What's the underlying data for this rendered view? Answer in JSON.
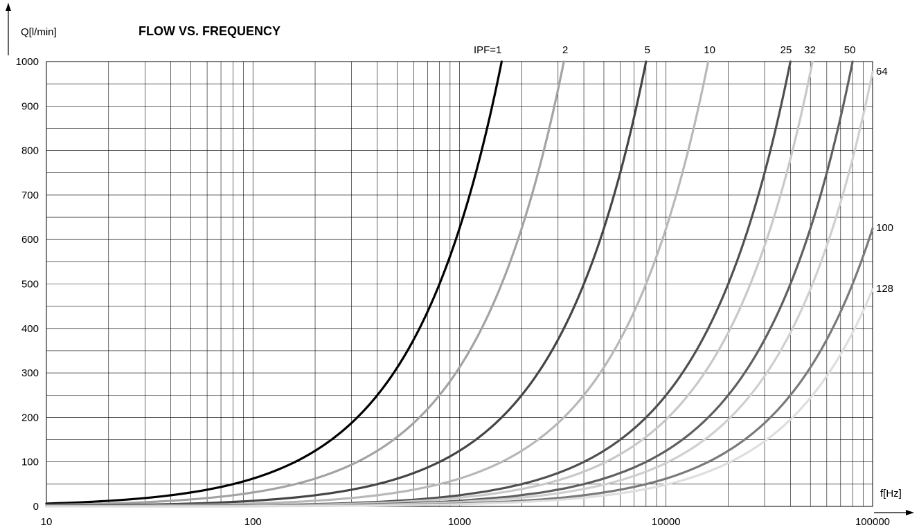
{
  "chart_data": {
    "type": "line",
    "title": "FLOW VS. FREQUENCY",
    "ylabel": "Q[l/min]",
    "xlabel": "f[Hz]",
    "x_scale": "log",
    "xlim": [
      10,
      100000
    ],
    "ylim": [
      0,
      1000
    ],
    "grid": true,
    "x_ticks": [
      10,
      100,
      1000,
      10000,
      100000
    ],
    "x_tick_labels": [
      "10",
      "100",
      "1000",
      "10000",
      "100000"
    ],
    "y_ticks": [
      0,
      100,
      200,
      300,
      400,
      500,
      600,
      700,
      800,
      900,
      1000
    ],
    "y_tick_labels": [
      "0",
      "100",
      "200",
      "300",
      "400",
      "500",
      "600",
      "700",
      "800",
      "900",
      "1000"
    ],
    "series": [
      {
        "name": "IPF=1",
        "color": "#000000",
        "x": [
          10,
          20,
          50,
          100,
          200,
          300,
          400,
          500,
          600,
          800,
          1000,
          1200,
          1400,
          1600
        ],
        "y": [
          6.3,
          12.5,
          31.3,
          62.5,
          125,
          187.5,
          250,
          312.5,
          375,
          500,
          625,
          750,
          875,
          1000
        ]
      },
      {
        "name": "2",
        "color": "#a3a3a3",
        "x": [
          10,
          100,
          200,
          500,
          1000,
          1500,
          2000,
          2500,
          3000,
          3200
        ],
        "y": [
          3.1,
          31.3,
          62.5,
          156.3,
          312.5,
          468.8,
          625,
          781.3,
          937.5,
          1000
        ]
      },
      {
        "name": "5",
        "color": "#454545",
        "x": [
          10,
          100,
          500,
          1000,
          2000,
          3000,
          4000,
          5000,
          6000,
          7000,
          8000
        ],
        "y": [
          1.3,
          12.5,
          62.5,
          125,
          250,
          375,
          500,
          625,
          750,
          875,
          1000
        ]
      },
      {
        "name": "10",
        "color": "#b8b8b8",
        "x": [
          10,
          100,
          1000,
          2000,
          4000,
          6000,
          8000,
          10000,
          12000,
          14000,
          16000
        ],
        "y": [
          0.6,
          6.3,
          62.5,
          125,
          250,
          375,
          500,
          625,
          750,
          875,
          1000
        ]
      },
      {
        "name": "25",
        "color": "#4f4f4f",
        "x": [
          10,
          1000,
          5000,
          10000,
          15000,
          20000,
          25000,
          30000,
          35000,
          40000
        ],
        "y": [
          0.3,
          25,
          125,
          250,
          375,
          500,
          625,
          750,
          875,
          1000
        ]
      },
      {
        "name": "32",
        "color": "#c8c8c8",
        "x": [
          10,
          1000,
          5000,
          10000,
          20000,
          30000,
          40000,
          51200
        ],
        "y": [
          0.2,
          19.5,
          97.7,
          195.3,
          390.6,
          585.9,
          781.3,
          1000
        ]
      },
      {
        "name": "50",
        "color": "#5f5f5f",
        "x": [
          10,
          1000,
          10000,
          20000,
          30000,
          40000,
          50000,
          60000,
          70000,
          80000
        ],
        "y": [
          0.1,
          12.5,
          125,
          250,
          375,
          500,
          625,
          750,
          875,
          1000
        ]
      },
      {
        "name": "64",
        "color": "#cfcfcf",
        "x": [
          10,
          1000,
          10000,
          20000,
          40000,
          60000,
          80000,
          100000
        ],
        "y": [
          0.1,
          9.8,
          97.7,
          195.3,
          390.6,
          585.9,
          781.3,
          976.6
        ]
      },
      {
        "name": "100",
        "color": "#7a7a7a",
        "x": [
          10,
          1000,
          10000,
          20000,
          40000,
          60000,
          80000,
          100000
        ],
        "y": [
          0.1,
          6.3,
          62.5,
          125,
          250,
          375,
          500,
          625
        ]
      },
      {
        "name": "128",
        "color": "#dedede",
        "x": [
          10,
          1000,
          10000,
          20000,
          40000,
          60000,
          80000,
          100000
        ],
        "y": [
          0,
          4.9,
          48.8,
          97.7,
          195.3,
          293,
          390.6,
          488.3
        ]
      }
    ]
  }
}
